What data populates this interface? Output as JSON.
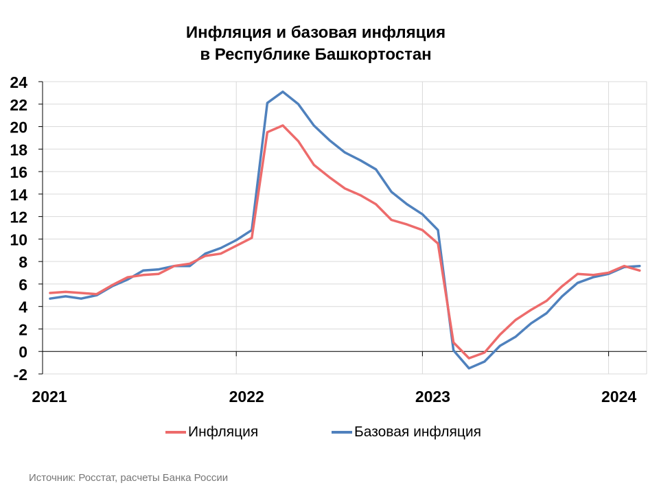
{
  "chart_data": {
    "type": "line",
    "title_line1": "Инфляция и базовая инфляция",
    "title_line2": "в  Республике Башкортостан",
    "xlabel": "",
    "ylabel": "",
    "ylim": [
      -2,
      24
    ],
    "yticks": [
      "24",
      "22",
      "20",
      "18",
      "16",
      "14",
      "12",
      "10",
      "8",
      "6",
      "4",
      "2",
      "0",
      "-2"
    ],
    "xticks": [
      "2021",
      "2022",
      "2023",
      "2024"
    ],
    "grid": true,
    "legend_position": "bottom",
    "x": [
      "2021-01",
      "2021-02",
      "2021-03",
      "2021-04",
      "2021-05",
      "2021-06",
      "2021-07",
      "2021-08",
      "2021-09",
      "2021-10",
      "2021-11",
      "2021-12",
      "2022-01",
      "2022-02",
      "2022-03",
      "2022-04",
      "2022-05",
      "2022-06",
      "2022-07",
      "2022-08",
      "2022-09",
      "2022-10",
      "2022-11",
      "2022-12",
      "2023-01",
      "2023-02",
      "2023-03",
      "2023-04",
      "2023-05",
      "2023-06",
      "2023-07",
      "2023-08",
      "2023-09",
      "2023-10",
      "2023-11",
      "2023-12",
      "2024-01",
      "2024-02",
      "2024-03"
    ],
    "series": [
      {
        "name": "Инфляция",
        "color": "#ED6B6B",
        "values": [
          5.2,
          5.3,
          5.2,
          5.1,
          5.9,
          6.6,
          6.8,
          6.9,
          7.6,
          7.8,
          8.5,
          8.7,
          9.4,
          10.1,
          19.5,
          20.1,
          18.7,
          16.6,
          15.5,
          14.5,
          13.9,
          13.1,
          11.7,
          11.3,
          10.8,
          9.6,
          0.8,
          -0.6,
          -0.1,
          1.5,
          2.8,
          3.7,
          4.5,
          5.8,
          6.9,
          6.8,
          7.0,
          7.6,
          7.2
        ]
      },
      {
        "name": "Базовая инфляция",
        "color": "#4F81BD",
        "values": [
          4.7,
          4.9,
          4.7,
          5.0,
          5.8,
          6.4,
          7.2,
          7.3,
          7.6,
          7.6,
          8.7,
          9.2,
          9.9,
          10.8,
          22.1,
          23.1,
          22.0,
          20.1,
          18.8,
          17.7,
          17.0,
          16.2,
          14.2,
          13.1,
          12.2,
          10.8,
          0.1,
          -1.5,
          -0.9,
          0.5,
          1.3,
          2.5,
          3.4,
          4.9,
          6.1,
          6.6,
          6.9,
          7.5,
          7.6
        ]
      }
    ]
  },
  "source": "Источник: Росстат, расчеты Банка России"
}
